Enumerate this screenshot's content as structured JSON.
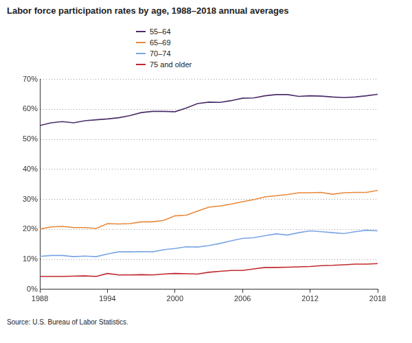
{
  "chart_data": {
    "type": "line",
    "title": "Labor force participation rates by age, 1988–2018 annual averages",
    "source": "Source: U.S. Bureau of Labor Statistics.",
    "x": [
      1988,
      1989,
      1990,
      1991,
      1992,
      1993,
      1994,
      1995,
      1996,
      1997,
      1998,
      1999,
      2000,
      2001,
      2002,
      2003,
      2004,
      2005,
      2006,
      2007,
      2008,
      2009,
      2010,
      2011,
      2012,
      2013,
      2014,
      2015,
      2016,
      2017,
      2018
    ],
    "series": [
      {
        "name": "55–64",
        "color": "#4b2c69",
        "values": [
          54.6,
          55.5,
          55.9,
          55.5,
          56.2,
          56.5,
          56.8,
          57.2,
          57.9,
          58.9,
          59.3,
          59.3,
          59.2,
          60.4,
          61.9,
          62.4,
          62.3,
          62.9,
          63.7,
          63.8,
          64.5,
          64.9,
          64.9,
          64.3,
          64.5,
          64.4,
          64.1,
          63.9,
          64.1,
          64.5,
          65.0
        ]
      },
      {
        "name": "65–69",
        "color": "#e8883a",
        "values": [
          20.1,
          20.8,
          21.0,
          20.6,
          20.6,
          20.3,
          21.9,
          21.8,
          21.9,
          22.5,
          22.5,
          23.0,
          24.5,
          24.7,
          26.1,
          27.4,
          27.8,
          28.4,
          29.2,
          29.9,
          30.8,
          31.2,
          31.6,
          32.2,
          32.2,
          32.3,
          31.7,
          32.2,
          32.3,
          32.3,
          33.0
        ]
      },
      {
        "name": "70–74",
        "color": "#7aa5e6",
        "values": [
          11.0,
          11.3,
          11.3,
          10.9,
          11.1,
          10.9,
          11.8,
          12.5,
          12.5,
          12.6,
          12.5,
          13.2,
          13.6,
          14.2,
          14.1,
          14.6,
          15.3,
          16.2,
          17.0,
          17.2,
          17.9,
          18.5,
          18.1,
          18.9,
          19.5,
          19.2,
          18.9,
          18.6,
          19.2,
          19.7,
          19.5
        ]
      },
      {
        "name": "75 and older",
        "color": "#c0282c",
        "values": [
          4.3,
          4.3,
          4.3,
          4.4,
          4.5,
          4.3,
          5.3,
          4.8,
          4.8,
          4.9,
          4.8,
          5.1,
          5.3,
          5.2,
          5.1,
          5.7,
          6.0,
          6.3,
          6.3,
          6.8,
          7.3,
          7.3,
          7.4,
          7.5,
          7.6,
          7.9,
          8.0,
          8.2,
          8.4,
          8.4,
          8.6
        ]
      }
    ],
    "xlim": [
      1988,
      2018
    ],
    "xticks": [
      1988,
      1994,
      2000,
      2006,
      2012,
      2018
    ],
    "ylim": [
      0,
      70
    ],
    "yticks": [
      {
        "value": 0,
        "label": "0%"
      },
      {
        "value": 10,
        "label": "10%"
      },
      {
        "value": 20,
        "label": "20%"
      },
      {
        "value": 30,
        "label": "30%"
      },
      {
        "value": 40,
        "label": "40%"
      },
      {
        "value": 50,
        "label": "50%"
      },
      {
        "value": 60,
        "label": "60%"
      },
      {
        "value": 70,
        "label": "70%"
      }
    ],
    "grid": true,
    "legend": "top"
  }
}
